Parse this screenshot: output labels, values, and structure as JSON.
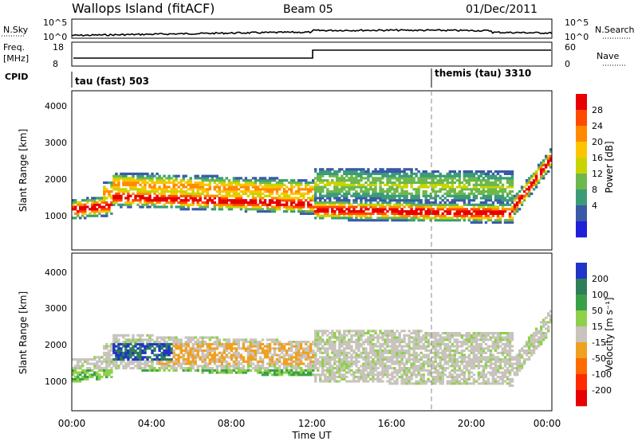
{
  "header": {
    "title": "Wallops Island (fitACF)",
    "beam": "Beam 05",
    "date": "01/Dec/2011"
  },
  "sky_panel": {
    "left_label": "N.Sky",
    "right_label": "N.Search",
    "left_ticks": [
      "10^5",
      "10^0"
    ],
    "right_ticks": [
      "10^5",
      "10^0"
    ]
  },
  "freq_panel": {
    "left_label_1": "Freq.",
    "left_label_2": "[MHz]",
    "right_label": "Nave",
    "left_ticks": [
      "18",
      "8"
    ],
    "right_ticks": [
      "60",
      "0"
    ]
  },
  "cpid_panel": {
    "label": "CPID",
    "modes": [
      {
        "label": "tau (fast) 503",
        "start_hour": 0
      },
      {
        "label": "themis (tau) 3310",
        "start_hour": 18
      }
    ]
  },
  "time_axis": {
    "label": "Time UT",
    "ticks": [
      "00:00",
      "04:00",
      "08:00",
      "12:00",
      "16:00",
      "20:00",
      "00:00"
    ]
  },
  "chart_data": [
    {
      "type": "heatmap",
      "name": "power",
      "xlabel": "Time UT",
      "ylabel": "Slant Range [km]",
      "xlim": [
        0,
        24
      ],
      "ylim": [
        180,
        4500
      ],
      "yticks": [
        "1000",
        "2000",
        "3000",
        "4000"
      ],
      "colorbar": {
        "label": "Power [dB]",
        "ticks": [
          "28",
          "24",
          "20",
          "16",
          "12",
          "8",
          "4"
        ],
        "colors": [
          "#e80000",
          "#ff4a00",
          "#ff8a00",
          "#ffc400",
          "#c8d400",
          "#6cb84c",
          "#3c9c78",
          "#3a5aa8",
          "#2020d8"
        ]
      },
      "features": [
        {
          "hours": [
            0,
            2
          ],
          "range_km": [
            1100,
            1600
          ],
          "level": "high"
        },
        {
          "hours": [
            2,
            12
          ],
          "range_km": [
            1400,
            1800
          ],
          "level": "medium"
        },
        {
          "hours": [
            12,
            22
          ],
          "range_km": [
            1000,
            1500
          ],
          "level": "high"
        },
        {
          "hours": [
            22,
            24
          ],
          "range_km": [
            1500,
            3000
          ],
          "level": "high"
        }
      ]
    },
    {
      "type": "heatmap",
      "name": "velocity",
      "xlabel": "Time UT",
      "ylabel": "Slant Range [km]",
      "xlim": [
        0,
        24
      ],
      "ylim": [
        180,
        4500
      ],
      "yticks": [
        "1000",
        "2000",
        "3000",
        "4000"
      ],
      "colorbar": {
        "label": "Velocity [m s⁻¹]",
        "ticks": [
          "200",
          "100",
          "50",
          "15",
          "-15",
          "-50",
          "-100",
          "-200"
        ],
        "colors": [
          "#2034c8",
          "#2e7e5a",
          "#3aa048",
          "#8ed04a",
          "#c8c4bc",
          "#f0a020",
          "#ff6a00",
          "#ff2a00",
          "#e80000"
        ]
      },
      "features": [
        {
          "hours": [
            2,
            5
          ],
          "range_km": [
            1500,
            2000
          ],
          "velocity": "positive"
        },
        {
          "hours": [
            4,
            12
          ],
          "range_km": [
            1500,
            2000
          ],
          "velocity": "negative"
        },
        {
          "hours": [
            12,
            24
          ],
          "range_km": [
            1000,
            2000
          ],
          "velocity": "near zero"
        }
      ]
    }
  ]
}
